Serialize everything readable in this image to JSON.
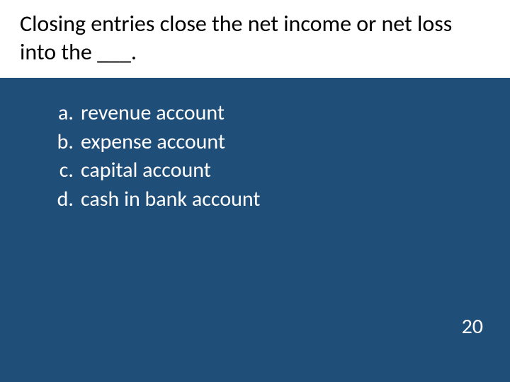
{
  "slide": {
    "question": "Closing entries close the net income or net loss into the ___.",
    "options": [
      {
        "label": "a.",
        "text": "revenue account"
      },
      {
        "label": "b.",
        "text": "expense account"
      },
      {
        "label": "c.",
        "text": "capital account"
      },
      {
        "label": "d.",
        "text": "cash in bank account"
      }
    ],
    "page_number": "20",
    "colors": {
      "background": "#1f4e79",
      "title_bg": "#ffffff",
      "title_text": "#000000",
      "body_text": "#ffffff"
    },
    "typography": {
      "title_fontsize_pt": 24,
      "option_fontsize_pt": 22,
      "pagenum_fontsize_pt": 22,
      "font_family": "Calibri"
    }
  }
}
